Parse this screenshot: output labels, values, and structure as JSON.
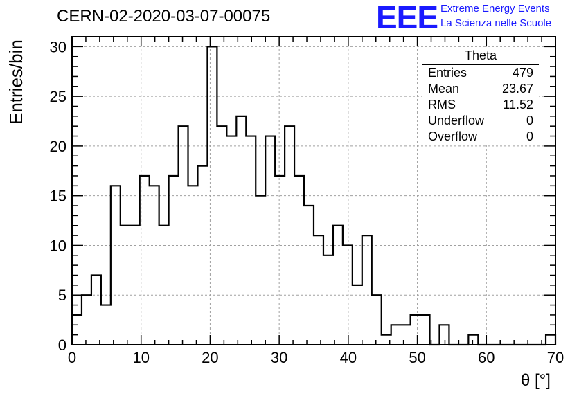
{
  "header": {
    "title": "CERN-02-2020-03-07-00075",
    "logo": "EEE",
    "logo_line1": "Extreme Energy Events",
    "logo_line2": "La Scienza nelle Scuole"
  },
  "stats_box": {
    "name": "Theta",
    "rows": [
      {
        "label": "Entries",
        "value": "479"
      },
      {
        "label": "Mean",
        "value": "23.67"
      },
      {
        "label": "RMS",
        "value": "11.52"
      },
      {
        "label": "Underflow",
        "value": "0"
      },
      {
        "label": "Overflow",
        "value": "0"
      }
    ]
  },
  "chart_data": {
    "type": "bar",
    "histogram": true,
    "xlabel": "θ [°]",
    "ylabel": "Entries/bin",
    "xlim": [
      0,
      70
    ],
    "ylim": [
      0,
      31
    ],
    "grid": true,
    "bin_width": 1.4,
    "x_ticks": [
      0,
      10,
      20,
      30,
      40,
      50,
      60,
      70
    ],
    "y_ticks": [
      0,
      5,
      10,
      15,
      20,
      25,
      30
    ],
    "values": [
      3,
      5,
      7,
      4,
      16,
      12,
      12,
      17,
      16,
      12,
      17,
      22,
      16,
      18,
      30,
      22,
      21,
      23,
      21,
      15,
      21,
      17,
      22,
      17,
      14,
      11,
      9,
      12,
      10,
      6,
      11,
      5,
      1,
      2,
      2,
      3,
      3,
      0,
      2,
      0,
      0,
      1,
      0,
      0,
      0,
      0,
      0,
      0,
      0,
      1
    ],
    "colors": {
      "line": "#000000",
      "grid": "#a0a0a0",
      "logo": "#1a1aff"
    }
  }
}
